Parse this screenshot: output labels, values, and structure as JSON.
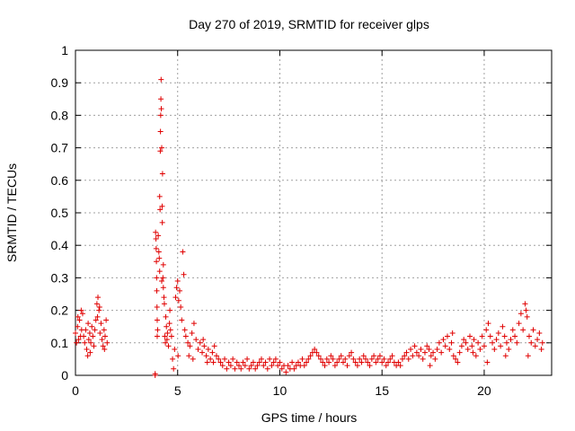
{
  "chart_data": {
    "type": "scatter",
    "title": "Day 270 of 2019, SRMTID for receiver glps",
    "xlabel": "GPS time / hours",
    "ylabel": "SRMTID / TECUs",
    "xlim": [
      0,
      23.3
    ],
    "ylim": [
      0,
      1
    ],
    "x_ticks": [
      0,
      5,
      10,
      15,
      20
    ],
    "y_ticks": [
      0,
      0.1,
      0.2,
      0.3,
      0.4,
      0.5,
      0.6,
      0.7,
      0.8,
      0.9,
      1
    ],
    "x_tick_labels": [
      "0",
      "5",
      "10",
      "15",
      "20"
    ],
    "y_tick_labels": [
      "0",
      "0.1",
      "0.2",
      "0.3",
      "0.4",
      "0.5",
      "0.6",
      "0.7",
      "0.8",
      "0.9",
      "1"
    ],
    "grid": true,
    "marker": "+",
    "series": [
      {
        "name": "SRMTID",
        "color": "#e00000",
        "points": [
          [
            0.0,
            0.13
          ],
          [
            0.05,
            0.1
          ],
          [
            0.1,
            0.15
          ],
          [
            0.15,
            0.11
          ],
          [
            0.2,
            0.17
          ],
          [
            0.25,
            0.12
          ],
          [
            0.3,
            0.14
          ],
          [
            0.35,
            0.19
          ],
          [
            0.4,
            0.12
          ],
          [
            0.45,
            0.1
          ],
          [
            0.5,
            0.14
          ],
          [
            0.55,
            0.08
          ],
          [
            0.6,
            0.06
          ],
          [
            0.65,
            0.11
          ],
          [
            0.7,
            0.13
          ],
          [
            0.75,
            0.1
          ],
          [
            0.8,
            0.15
          ],
          [
            0.85,
            0.12
          ],
          [
            0.9,
            0.09
          ],
          [
            0.95,
            0.14
          ],
          [
            1.0,
            0.17
          ],
          [
            1.05,
            0.22
          ],
          [
            1.1,
            0.24
          ],
          [
            1.15,
            0.2
          ],
          [
            1.2,
            0.13
          ],
          [
            1.25,
            0.16
          ],
          [
            1.3,
            0.11
          ],
          [
            1.35,
            0.09
          ],
          [
            1.4,
            0.14
          ],
          [
            1.45,
            0.12
          ],
          [
            1.5,
            0.17
          ],
          [
            1.55,
            0.1
          ],
          [
            0.12,
            0.18
          ],
          [
            0.28,
            0.2
          ],
          [
            0.62,
            0.16
          ],
          [
            1.08,
            0.18
          ],
          [
            1.18,
            0.21
          ],
          [
            0.72,
            0.07
          ],
          [
            1.42,
            0.08
          ],
          [
            3.9,
            0.0
          ],
          [
            3.9,
            0.005
          ],
          [
            3.92,
            0.44
          ],
          [
            3.94,
            0.42
          ],
          [
            3.95,
            0.39
          ],
          [
            3.96,
            0.35
          ],
          [
            3.97,
            0.3
          ],
          [
            3.98,
            0.26
          ],
          [
            3.99,
            0.21
          ],
          [
            4.0,
            0.17
          ],
          [
            4.0,
            0.12
          ],
          [
            4.02,
            0.14
          ],
          [
            4.05,
            0.43
          ],
          [
            4.08,
            0.38
          ],
          [
            4.1,
            0.36
          ],
          [
            4.12,
            0.32
          ],
          [
            4.12,
            0.55
          ],
          [
            4.14,
            0.51
          ],
          [
            4.15,
            0.69
          ],
          [
            4.16,
            0.75
          ],
          [
            4.17,
            0.8
          ],
          [
            4.18,
            0.85
          ],
          [
            4.19,
            0.91
          ],
          [
            4.2,
            0.82
          ],
          [
            4.22,
            0.7
          ],
          [
            4.24,
            0.52
          ],
          [
            4.25,
            0.47
          ],
          [
            4.26,
            0.62
          ],
          [
            4.28,
            0.3
          ],
          [
            4.3,
            0.27
          ],
          [
            4.33,
            0.24
          ],
          [
            4.35,
            0.22
          ],
          [
            4.37,
            0.12
          ],
          [
            4.4,
            0.1
          ],
          [
            4.42,
            0.18
          ],
          [
            4.45,
            0.15
          ],
          [
            4.48,
            0.11
          ],
          [
            4.5,
            0.13
          ],
          [
            4.55,
            0.09
          ],
          [
            4.6,
            0.16
          ],
          [
            4.65,
            0.14
          ],
          [
            4.7,
            0.12
          ],
          [
            4.75,
            0.05
          ],
          [
            4.8,
            0.02
          ],
          [
            4.85,
            0.08
          ],
          [
            4.9,
            0.24
          ],
          [
            4.95,
            0.27
          ],
          [
            5.0,
            0.29
          ],
          [
            5.05,
            0.23
          ],
          [
            5.1,
            0.26
          ],
          [
            5.15,
            0.21
          ],
          [
            5.2,
            0.17
          ],
          [
            5.25,
            0.38
          ],
          [
            5.3,
            0.31
          ],
          [
            5.35,
            0.14
          ],
          [
            5.4,
            0.12
          ],
          [
            5.5,
            0.1
          ],
          [
            5.6,
            0.09
          ],
          [
            5.7,
            0.13
          ],
          [
            5.8,
            0.16
          ],
          [
            5.9,
            0.11
          ],
          [
            6.0,
            0.08
          ],
          [
            6.1,
            0.1
          ],
          [
            6.2,
            0.07
          ],
          [
            6.3,
            0.09
          ],
          [
            6.4,
            0.06
          ],
          [
            6.5,
            0.08
          ],
          [
            6.6,
            0.05
          ],
          [
            6.7,
            0.07
          ],
          [
            6.8,
            0.09
          ],
          [
            6.9,
            0.06
          ],
          [
            7.0,
            0.05
          ],
          [
            5.55,
            0.06
          ],
          [
            5.75,
            0.05
          ],
          [
            6.25,
            0.11
          ],
          [
            6.45,
            0.04
          ],
          [
            6.75,
            0.04
          ],
          [
            4.62,
            0.2
          ],
          [
            5.02,
            0.06
          ],
          [
            4.3,
            0.34
          ],
          [
            4.22,
            0.29
          ],
          [
            7.1,
            0.04
          ],
          [
            7.2,
            0.03
          ],
          [
            7.3,
            0.05
          ],
          [
            7.4,
            0.02
          ],
          [
            7.5,
            0.04
          ],
          [
            7.6,
            0.03
          ],
          [
            7.7,
            0.05
          ],
          [
            7.8,
            0.02
          ],
          [
            7.9,
            0.04
          ],
          [
            8.0,
            0.03
          ],
          [
            8.1,
            0.02
          ],
          [
            8.2,
            0.04
          ],
          [
            8.3,
            0.03
          ],
          [
            8.4,
            0.05
          ],
          [
            8.5,
            0.02
          ],
          [
            8.6,
            0.03
          ],
          [
            8.7,
            0.04
          ],
          [
            8.8,
            0.02
          ],
          [
            8.9,
            0.03
          ],
          [
            9.0,
            0.04
          ],
          [
            9.1,
            0.05
          ],
          [
            9.2,
            0.03
          ],
          [
            9.3,
            0.04
          ],
          [
            9.4,
            0.02
          ],
          [
            9.5,
            0.05
          ],
          [
            9.6,
            0.03
          ],
          [
            9.7,
            0.04
          ],
          [
            9.8,
            0.05
          ],
          [
            9.9,
            0.03
          ],
          [
            10.0,
            0.04
          ],
          [
            10.1,
            0.02
          ],
          [
            10.2,
            0.03
          ],
          [
            10.3,
            0.01
          ],
          [
            10.4,
            0.03
          ],
          [
            10.5,
            0.02
          ],
          [
            10.6,
            0.04
          ],
          [
            10.7,
            0.02
          ],
          [
            10.8,
            0.03
          ],
          [
            10.9,
            0.04
          ],
          [
            11.0,
            0.03
          ],
          [
            11.1,
            0.05
          ],
          [
            11.2,
            0.03
          ],
          [
            11.3,
            0.04
          ],
          [
            11.4,
            0.05
          ],
          [
            11.5,
            0.06
          ],
          [
            11.6,
            0.07
          ],
          [
            11.7,
            0.08
          ],
          [
            11.8,
            0.07
          ],
          [
            11.9,
            0.06
          ],
          [
            12.0,
            0.05
          ],
          [
            12.1,
            0.04
          ],
          [
            12.2,
            0.03
          ],
          [
            12.3,
            0.05
          ],
          [
            12.4,
            0.04
          ],
          [
            12.5,
            0.06
          ],
          [
            12.6,
            0.05
          ],
          [
            12.7,
            0.03
          ],
          [
            12.8,
            0.04
          ],
          [
            12.9,
            0.05
          ],
          [
            13.0,
            0.06
          ],
          [
            13.1,
            0.04
          ],
          [
            13.2,
            0.05
          ],
          [
            13.3,
            0.03
          ],
          [
            13.4,
            0.06
          ],
          [
            13.5,
            0.07
          ],
          [
            13.6,
            0.05
          ],
          [
            13.7,
            0.04
          ],
          [
            13.8,
            0.03
          ],
          [
            13.9,
            0.05
          ],
          [
            14.0,
            0.04
          ],
          [
            14.1,
            0.06
          ],
          [
            14.2,
            0.05
          ],
          [
            14.3,
            0.04
          ],
          [
            14.4,
            0.03
          ],
          [
            14.5,
            0.05
          ],
          [
            14.6,
            0.06
          ],
          [
            14.7,
            0.04
          ],
          [
            14.8,
            0.05
          ],
          [
            14.9,
            0.06
          ],
          [
            15.0,
            0.04
          ],
          [
            15.1,
            0.05
          ],
          [
            15.2,
            0.03
          ],
          [
            15.3,
            0.04
          ],
          [
            15.4,
            0.05
          ],
          [
            15.5,
            0.06
          ],
          [
            15.6,
            0.04
          ],
          [
            15.7,
            0.03
          ],
          [
            15.8,
            0.04
          ],
          [
            15.9,
            0.03
          ],
          [
            16.0,
            0.05
          ],
          [
            16.1,
            0.06
          ],
          [
            16.2,
            0.07
          ],
          [
            16.3,
            0.05
          ],
          [
            16.4,
            0.08
          ],
          [
            16.5,
            0.06
          ],
          [
            16.6,
            0.09
          ],
          [
            16.7,
            0.07
          ],
          [
            16.8,
            0.06
          ],
          [
            16.9,
            0.08
          ],
          [
            17.0,
            0.05
          ],
          [
            17.1,
            0.07
          ],
          [
            17.2,
            0.09
          ],
          [
            17.3,
            0.08
          ],
          [
            17.4,
            0.06
          ],
          [
            17.5,
            0.07
          ],
          [
            17.6,
            0.05
          ],
          [
            17.7,
            0.08
          ],
          [
            17.8,
            0.1
          ],
          [
            17.9,
            0.07
          ],
          [
            18.0,
            0.11
          ],
          [
            18.1,
            0.09
          ],
          [
            18.2,
            0.12
          ],
          [
            18.3,
            0.08
          ],
          [
            18.4,
            0.1
          ],
          [
            18.5,
            0.06
          ],
          [
            18.6,
            0.05
          ],
          [
            18.7,
            0.04
          ],
          [
            18.8,
            0.07
          ],
          [
            18.9,
            0.09
          ],
          [
            19.0,
            0.11
          ],
          [
            19.1,
            0.1
          ],
          [
            19.2,
            0.08
          ],
          [
            19.3,
            0.12
          ],
          [
            19.4,
            0.09
          ],
          [
            19.5,
            0.11
          ],
          [
            19.6,
            0.06
          ],
          [
            19.7,
            0.1
          ],
          [
            19.8,
            0.08
          ],
          [
            19.9,
            0.12
          ],
          [
            20.0,
            0.09
          ],
          [
            20.1,
            0.14
          ],
          [
            20.2,
            0.16
          ],
          [
            20.3,
            0.12
          ],
          [
            20.4,
            0.1
          ],
          [
            20.5,
            0.08
          ],
          [
            20.6,
            0.11
          ],
          [
            20.7,
            0.13
          ],
          [
            20.8,
            0.09
          ],
          [
            20.9,
            0.15
          ],
          [
            21.0,
            0.12
          ],
          [
            21.1,
            0.1
          ],
          [
            21.2,
            0.08
          ],
          [
            21.3,
            0.11
          ],
          [
            21.4,
            0.14
          ],
          [
            21.5,
            0.12
          ],
          [
            21.6,
            0.1
          ],
          [
            21.7,
            0.16
          ],
          [
            21.8,
            0.19
          ],
          [
            21.9,
            0.14
          ],
          [
            22.0,
            0.22
          ],
          [
            22.05,
            0.2
          ],
          [
            22.1,
            0.18
          ],
          [
            22.2,
            0.12
          ],
          [
            22.3,
            0.1
          ],
          [
            22.4,
            0.14
          ],
          [
            22.5,
            0.09
          ],
          [
            22.6,
            0.11
          ],
          [
            22.7,
            0.13
          ],
          [
            22.8,
            0.08
          ],
          [
            22.85,
            0.1
          ],
          [
            20.15,
            0.04
          ],
          [
            21.05,
            0.06
          ],
          [
            22.15,
            0.06
          ],
          [
            18.45,
            0.13
          ],
          [
            19.45,
            0.07
          ],
          [
            17.35,
            0.03
          ]
        ]
      }
    ]
  }
}
